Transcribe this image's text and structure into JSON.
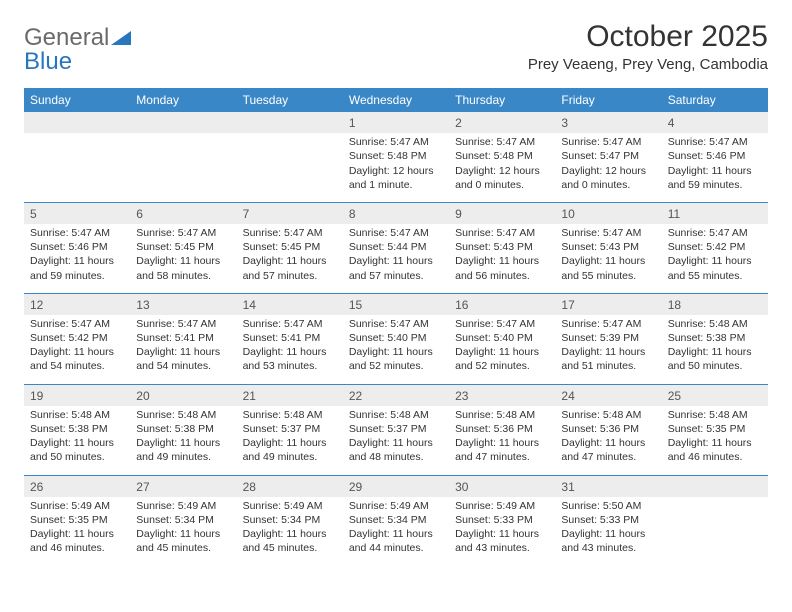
{
  "logo": {
    "word1": "General",
    "word2": "Blue",
    "color_gray": "#6a6a6a",
    "color_blue": "#2976bd"
  },
  "title": "October 2025",
  "location": "Prey Veaeng, Prey Veng, Cambodia",
  "weekdays": [
    "Sunday",
    "Monday",
    "Tuesday",
    "Wednesday",
    "Thursday",
    "Friday",
    "Saturday"
  ],
  "colors": {
    "header_bg": "#3a87c8",
    "header_fg": "#ffffff",
    "daynum_bg": "#ededed",
    "line": "#3a87c8",
    "text": "#333333"
  },
  "weeks": [
    [
      {
        "day": "",
        "sunrise": "",
        "sunset": "",
        "daylight": ""
      },
      {
        "day": "",
        "sunrise": "",
        "sunset": "",
        "daylight": ""
      },
      {
        "day": "",
        "sunrise": "",
        "sunset": "",
        "daylight": ""
      },
      {
        "day": "1",
        "sunrise": "Sunrise: 5:47 AM",
        "sunset": "Sunset: 5:48 PM",
        "daylight": "Daylight: 12 hours and 1 minute."
      },
      {
        "day": "2",
        "sunrise": "Sunrise: 5:47 AM",
        "sunset": "Sunset: 5:48 PM",
        "daylight": "Daylight: 12 hours and 0 minutes."
      },
      {
        "day": "3",
        "sunrise": "Sunrise: 5:47 AM",
        "sunset": "Sunset: 5:47 PM",
        "daylight": "Daylight: 12 hours and 0 minutes."
      },
      {
        "day": "4",
        "sunrise": "Sunrise: 5:47 AM",
        "sunset": "Sunset: 5:46 PM",
        "daylight": "Daylight: 11 hours and 59 minutes."
      }
    ],
    [
      {
        "day": "5",
        "sunrise": "Sunrise: 5:47 AM",
        "sunset": "Sunset: 5:46 PM",
        "daylight": "Daylight: 11 hours and 59 minutes."
      },
      {
        "day": "6",
        "sunrise": "Sunrise: 5:47 AM",
        "sunset": "Sunset: 5:45 PM",
        "daylight": "Daylight: 11 hours and 58 minutes."
      },
      {
        "day": "7",
        "sunrise": "Sunrise: 5:47 AM",
        "sunset": "Sunset: 5:45 PM",
        "daylight": "Daylight: 11 hours and 57 minutes."
      },
      {
        "day": "8",
        "sunrise": "Sunrise: 5:47 AM",
        "sunset": "Sunset: 5:44 PM",
        "daylight": "Daylight: 11 hours and 57 minutes."
      },
      {
        "day": "9",
        "sunrise": "Sunrise: 5:47 AM",
        "sunset": "Sunset: 5:43 PM",
        "daylight": "Daylight: 11 hours and 56 minutes."
      },
      {
        "day": "10",
        "sunrise": "Sunrise: 5:47 AM",
        "sunset": "Sunset: 5:43 PM",
        "daylight": "Daylight: 11 hours and 55 minutes."
      },
      {
        "day": "11",
        "sunrise": "Sunrise: 5:47 AM",
        "sunset": "Sunset: 5:42 PM",
        "daylight": "Daylight: 11 hours and 55 minutes."
      }
    ],
    [
      {
        "day": "12",
        "sunrise": "Sunrise: 5:47 AM",
        "sunset": "Sunset: 5:42 PM",
        "daylight": "Daylight: 11 hours and 54 minutes."
      },
      {
        "day": "13",
        "sunrise": "Sunrise: 5:47 AM",
        "sunset": "Sunset: 5:41 PM",
        "daylight": "Daylight: 11 hours and 54 minutes."
      },
      {
        "day": "14",
        "sunrise": "Sunrise: 5:47 AM",
        "sunset": "Sunset: 5:41 PM",
        "daylight": "Daylight: 11 hours and 53 minutes."
      },
      {
        "day": "15",
        "sunrise": "Sunrise: 5:47 AM",
        "sunset": "Sunset: 5:40 PM",
        "daylight": "Daylight: 11 hours and 52 minutes."
      },
      {
        "day": "16",
        "sunrise": "Sunrise: 5:47 AM",
        "sunset": "Sunset: 5:40 PM",
        "daylight": "Daylight: 11 hours and 52 minutes."
      },
      {
        "day": "17",
        "sunrise": "Sunrise: 5:47 AM",
        "sunset": "Sunset: 5:39 PM",
        "daylight": "Daylight: 11 hours and 51 minutes."
      },
      {
        "day": "18",
        "sunrise": "Sunrise: 5:48 AM",
        "sunset": "Sunset: 5:38 PM",
        "daylight": "Daylight: 11 hours and 50 minutes."
      }
    ],
    [
      {
        "day": "19",
        "sunrise": "Sunrise: 5:48 AM",
        "sunset": "Sunset: 5:38 PM",
        "daylight": "Daylight: 11 hours and 50 minutes."
      },
      {
        "day": "20",
        "sunrise": "Sunrise: 5:48 AM",
        "sunset": "Sunset: 5:38 PM",
        "daylight": "Daylight: 11 hours and 49 minutes."
      },
      {
        "day": "21",
        "sunrise": "Sunrise: 5:48 AM",
        "sunset": "Sunset: 5:37 PM",
        "daylight": "Daylight: 11 hours and 49 minutes."
      },
      {
        "day": "22",
        "sunrise": "Sunrise: 5:48 AM",
        "sunset": "Sunset: 5:37 PM",
        "daylight": "Daylight: 11 hours and 48 minutes."
      },
      {
        "day": "23",
        "sunrise": "Sunrise: 5:48 AM",
        "sunset": "Sunset: 5:36 PM",
        "daylight": "Daylight: 11 hours and 47 minutes."
      },
      {
        "day": "24",
        "sunrise": "Sunrise: 5:48 AM",
        "sunset": "Sunset: 5:36 PM",
        "daylight": "Daylight: 11 hours and 47 minutes."
      },
      {
        "day": "25",
        "sunrise": "Sunrise: 5:48 AM",
        "sunset": "Sunset: 5:35 PM",
        "daylight": "Daylight: 11 hours and 46 minutes."
      }
    ],
    [
      {
        "day": "26",
        "sunrise": "Sunrise: 5:49 AM",
        "sunset": "Sunset: 5:35 PM",
        "daylight": "Daylight: 11 hours and 46 minutes."
      },
      {
        "day": "27",
        "sunrise": "Sunrise: 5:49 AM",
        "sunset": "Sunset: 5:34 PM",
        "daylight": "Daylight: 11 hours and 45 minutes."
      },
      {
        "day": "28",
        "sunrise": "Sunrise: 5:49 AM",
        "sunset": "Sunset: 5:34 PM",
        "daylight": "Daylight: 11 hours and 45 minutes."
      },
      {
        "day": "29",
        "sunrise": "Sunrise: 5:49 AM",
        "sunset": "Sunset: 5:34 PM",
        "daylight": "Daylight: 11 hours and 44 minutes."
      },
      {
        "day": "30",
        "sunrise": "Sunrise: 5:49 AM",
        "sunset": "Sunset: 5:33 PM",
        "daylight": "Daylight: 11 hours and 43 minutes."
      },
      {
        "day": "31",
        "sunrise": "Sunrise: 5:50 AM",
        "sunset": "Sunset: 5:33 PM",
        "daylight": "Daylight: 11 hours and 43 minutes."
      },
      {
        "day": "",
        "sunrise": "",
        "sunset": "",
        "daylight": ""
      }
    ]
  ]
}
